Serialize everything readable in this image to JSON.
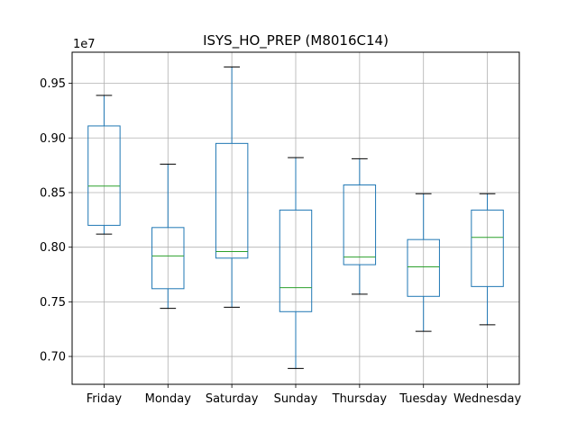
{
  "chart_data": {
    "type": "box",
    "title": "ISYS_HO_PREP (M8016C14)",
    "y_offset_label": "1e7",
    "xlabel": "",
    "ylabel": "",
    "ylim": [
      0.6745,
      0.9785
    ],
    "yticks": [
      0.7,
      0.75,
      0.8,
      0.85,
      0.9,
      0.95
    ],
    "ytick_labels": [
      "0.70",
      "0.75",
      "0.80",
      "0.85",
      "0.90",
      "0.95"
    ],
    "grid": true,
    "categories": [
      "Friday",
      "Monday",
      "Saturday",
      "Sunday",
      "Thursday",
      "Tuesday",
      "Wednesday"
    ],
    "boxes": [
      {
        "category": "Friday",
        "whisker_low": 0.812,
        "q1": 0.82,
        "median": 0.856,
        "q3": 0.911,
        "whisker_high": 0.939
      },
      {
        "category": "Monday",
        "whisker_low": 0.744,
        "q1": 0.762,
        "median": 0.792,
        "q3": 0.818,
        "whisker_high": 0.876
      },
      {
        "category": "Saturday",
        "whisker_low": 0.745,
        "q1": 0.79,
        "median": 0.796,
        "q3": 0.895,
        "whisker_high": 0.965
      },
      {
        "category": "Sunday",
        "whisker_low": 0.689,
        "q1": 0.741,
        "median": 0.763,
        "q3": 0.834,
        "whisker_high": 0.882
      },
      {
        "category": "Thursday",
        "whisker_low": 0.757,
        "q1": 0.784,
        "median": 0.791,
        "q3": 0.857,
        "whisker_high": 0.881
      },
      {
        "category": "Tuesday",
        "whisker_low": 0.723,
        "q1": 0.755,
        "median": 0.782,
        "q3": 0.807,
        "whisker_high": 0.849
      },
      {
        "category": "Wednesday",
        "whisker_low": 0.729,
        "q1": 0.764,
        "median": 0.809,
        "q3": 0.834,
        "whisker_high": 0.849
      }
    ],
    "colors": {
      "box": "#1f77b4",
      "median": "#2ca02c",
      "whisker": "#1f77b4",
      "cap": "#000000",
      "grid": "#b0b0b0",
      "axes": "#000000"
    }
  }
}
